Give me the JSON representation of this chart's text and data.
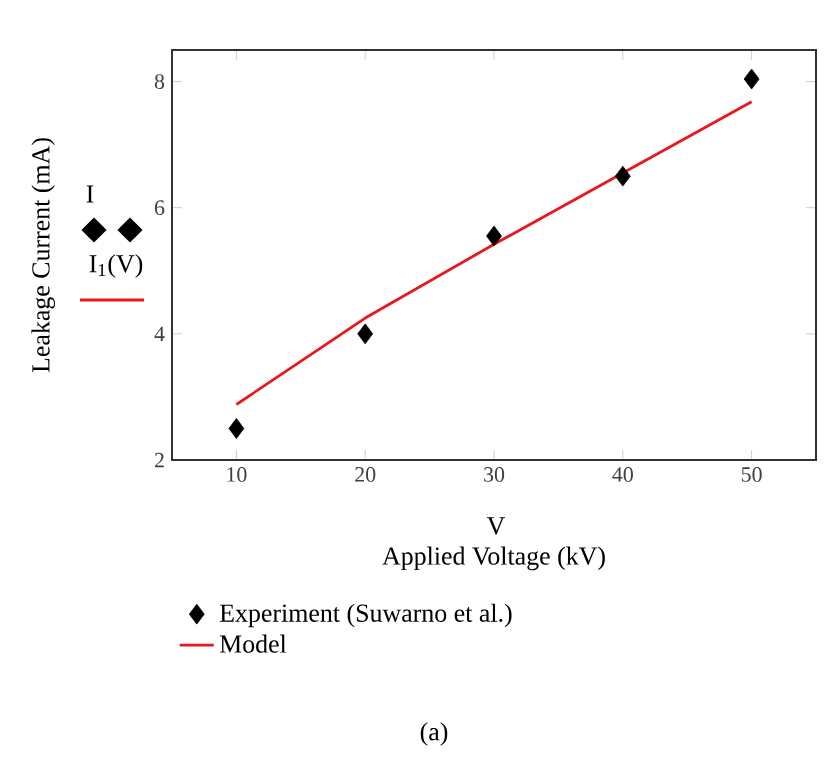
{
  "chart_data": {
    "type": "scatter",
    "xlabel": "Applied Voltage (kV)",
    "ylabel": "Leakage Current (mA)",
    "x": [
      10,
      20,
      30,
      40,
      50
    ],
    "series": [
      {
        "name": "Experiment (Suwarno et al.)",
        "color": "#000000",
        "marker": "diamond",
        "values": [
          2.5,
          4.0,
          5.55,
          6.5,
          8.04
        ]
      },
      {
        "name": "Model",
        "type": "line",
        "color": "#e8191c",
        "marker": "none",
        "line_style": "solid",
        "values": [
          2.88,
          4.25,
          5.42,
          6.55,
          7.68
        ]
      }
    ],
    "xlim": [
      5,
      55
    ],
    "ylim": [
      2,
      8.5
    ],
    "xticks": [
      10,
      20,
      30,
      40,
      50
    ],
    "yticks": [
      2,
      4,
      6,
      8
    ],
    "grid": false,
    "legend": "bottom",
    "annotations": [
      "I",
      "I$_{1}$(V)",
      "V",
      "(a)"
    ]
  }
}
